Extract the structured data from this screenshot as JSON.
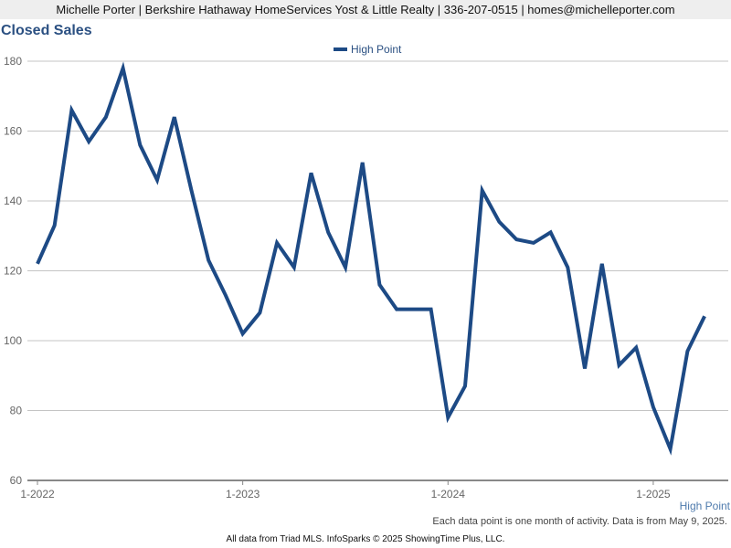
{
  "header": {
    "text": "Michelle Porter | Berkshire Hathaway HomeServices Yost & Little Realty | 336-207-0515 | homes@michelleporter.com"
  },
  "chart_data": {
    "type": "line",
    "title": "Closed Sales",
    "xlabel": "",
    "ylabel": "",
    "ylim": [
      60,
      180
    ],
    "yticks": [
      60,
      80,
      100,
      120,
      140,
      160,
      180
    ],
    "xtick_labels": [
      "1-2022",
      "1-2023",
      "1-2024",
      "1-2025"
    ],
    "x": [
      "2022-01",
      "2022-02",
      "2022-03",
      "2022-04",
      "2022-05",
      "2022-06",
      "2022-07",
      "2022-08",
      "2022-09",
      "2022-10",
      "2022-11",
      "2022-12",
      "2023-01",
      "2023-02",
      "2023-03",
      "2023-04",
      "2023-05",
      "2023-06",
      "2023-07",
      "2023-08",
      "2023-09",
      "2023-10",
      "2023-11",
      "2023-12",
      "2024-01",
      "2024-02",
      "2024-03",
      "2024-04",
      "2024-05",
      "2024-06",
      "2024-07",
      "2024-08",
      "2024-09",
      "2024-10",
      "2024-11",
      "2024-12",
      "2025-01",
      "2025-02",
      "2025-03",
      "2025-04"
    ],
    "series": [
      {
        "name": "High Point",
        "color": "#1d4a85",
        "values": [
          122,
          133,
          166,
          157,
          164,
          178,
          156,
          146,
          164,
          143,
          123,
          113,
          102,
          108,
          128,
          121,
          148,
          131,
          121,
          151,
          116,
          109,
          109,
          109,
          78,
          87,
          143,
          134,
          129,
          128,
          131,
          121,
          92,
          122,
          93,
          98,
          81,
          69,
          97,
          107
        ]
      }
    ],
    "legend": "top-center",
    "grid": true,
    "series_label": "High Point",
    "note": "Each data point is one month of activity. Data is from May 9, 2025."
  },
  "footer": {
    "text": "All data from Triad MLS. InfoSparks © 2025 ShowingTime Plus, LLC."
  }
}
